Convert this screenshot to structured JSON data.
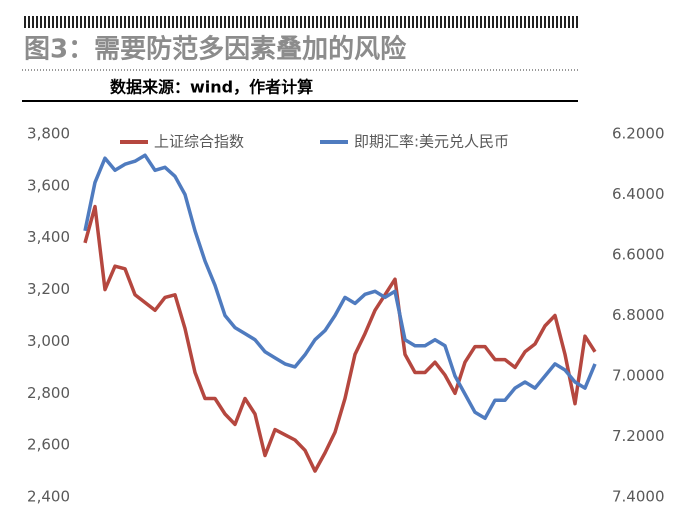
{
  "chart_data": {
    "type": "line",
    "title": "图3：需要防范多因素叠加的风险",
    "subtitle": "数据来源：wind，作者计算",
    "series": [
      {
        "name": "上证综合指数",
        "color": "#b5473f",
        "values": [
          3380,
          3520,
          3200,
          3290,
          3280,
          3180,
          3150,
          3120,
          3170,
          3180,
          3050,
          2880,
          2780,
          2780,
          2720,
          2680,
          2780,
          2720,
          2560,
          2660,
          2640,
          2620,
          2580,
          2500,
          2570,
          2650,
          2780,
          2950,
          3030,
          3120,
          3180,
          3240,
          2950,
          2880,
          2880,
          2920,
          2870,
          2800,
          2920,
          2980,
          2980,
          2930,
          2930,
          2900,
          2960,
          2990,
          3060,
          3100,
          2950,
          2760,
          3020,
          2960
        ]
      },
      {
        "name": "即期汇率:美元兑人民币",
        "color": "#4f7bbf",
        "axis": "y2",
        "values": [
          6.52,
          6.36,
          6.28,
          6.32,
          6.3,
          6.29,
          6.27,
          6.32,
          6.31,
          6.34,
          6.4,
          6.52,
          6.62,
          6.7,
          6.8,
          6.84,
          6.86,
          6.88,
          6.92,
          6.94,
          6.96,
          6.97,
          6.93,
          6.88,
          6.85,
          6.8,
          6.74,
          6.76,
          6.73,
          6.72,
          6.74,
          6.72,
          6.88,
          6.9,
          6.9,
          6.88,
          6.9,
          7.0,
          7.06,
          7.12,
          7.14,
          7.08,
          7.08,
          7.04,
          7.02,
          7.04,
          7.0,
          6.96,
          6.98,
          7.02,
          7.04,
          6.96
        ]
      }
    ],
    "ylim": [
      2400,
      3800
    ],
    "yticks": [
      {
        "value": 2400,
        "label": "2,400"
      },
      {
        "value": 2600,
        "label": "2,600"
      },
      {
        "value": 2800,
        "label": "2,800"
      },
      {
        "value": 3000,
        "label": "3,000"
      },
      {
        "value": 3200,
        "label": "3,200"
      },
      {
        "value": 3400,
        "label": "3,400"
      },
      {
        "value": 3600,
        "label": "3,600"
      },
      {
        "value": 3800,
        "label": "3,800"
      }
    ],
    "y2lim": [
      6.2,
      7.4
    ],
    "y2_reversed": true,
    "y2ticks": [
      {
        "value": 6.2,
        "label": "6.2000"
      },
      {
        "value": 6.4,
        "label": "6.4000"
      },
      {
        "value": 6.6,
        "label": "6.6000"
      },
      {
        "value": 6.8,
        "label": "6.8000"
      },
      {
        "value": 7.0,
        "label": "7.0000"
      },
      {
        "value": 7.2,
        "label": "7.2000"
      },
      {
        "value": 7.4,
        "label": "7.4000"
      }
    ],
    "grid": false
  }
}
